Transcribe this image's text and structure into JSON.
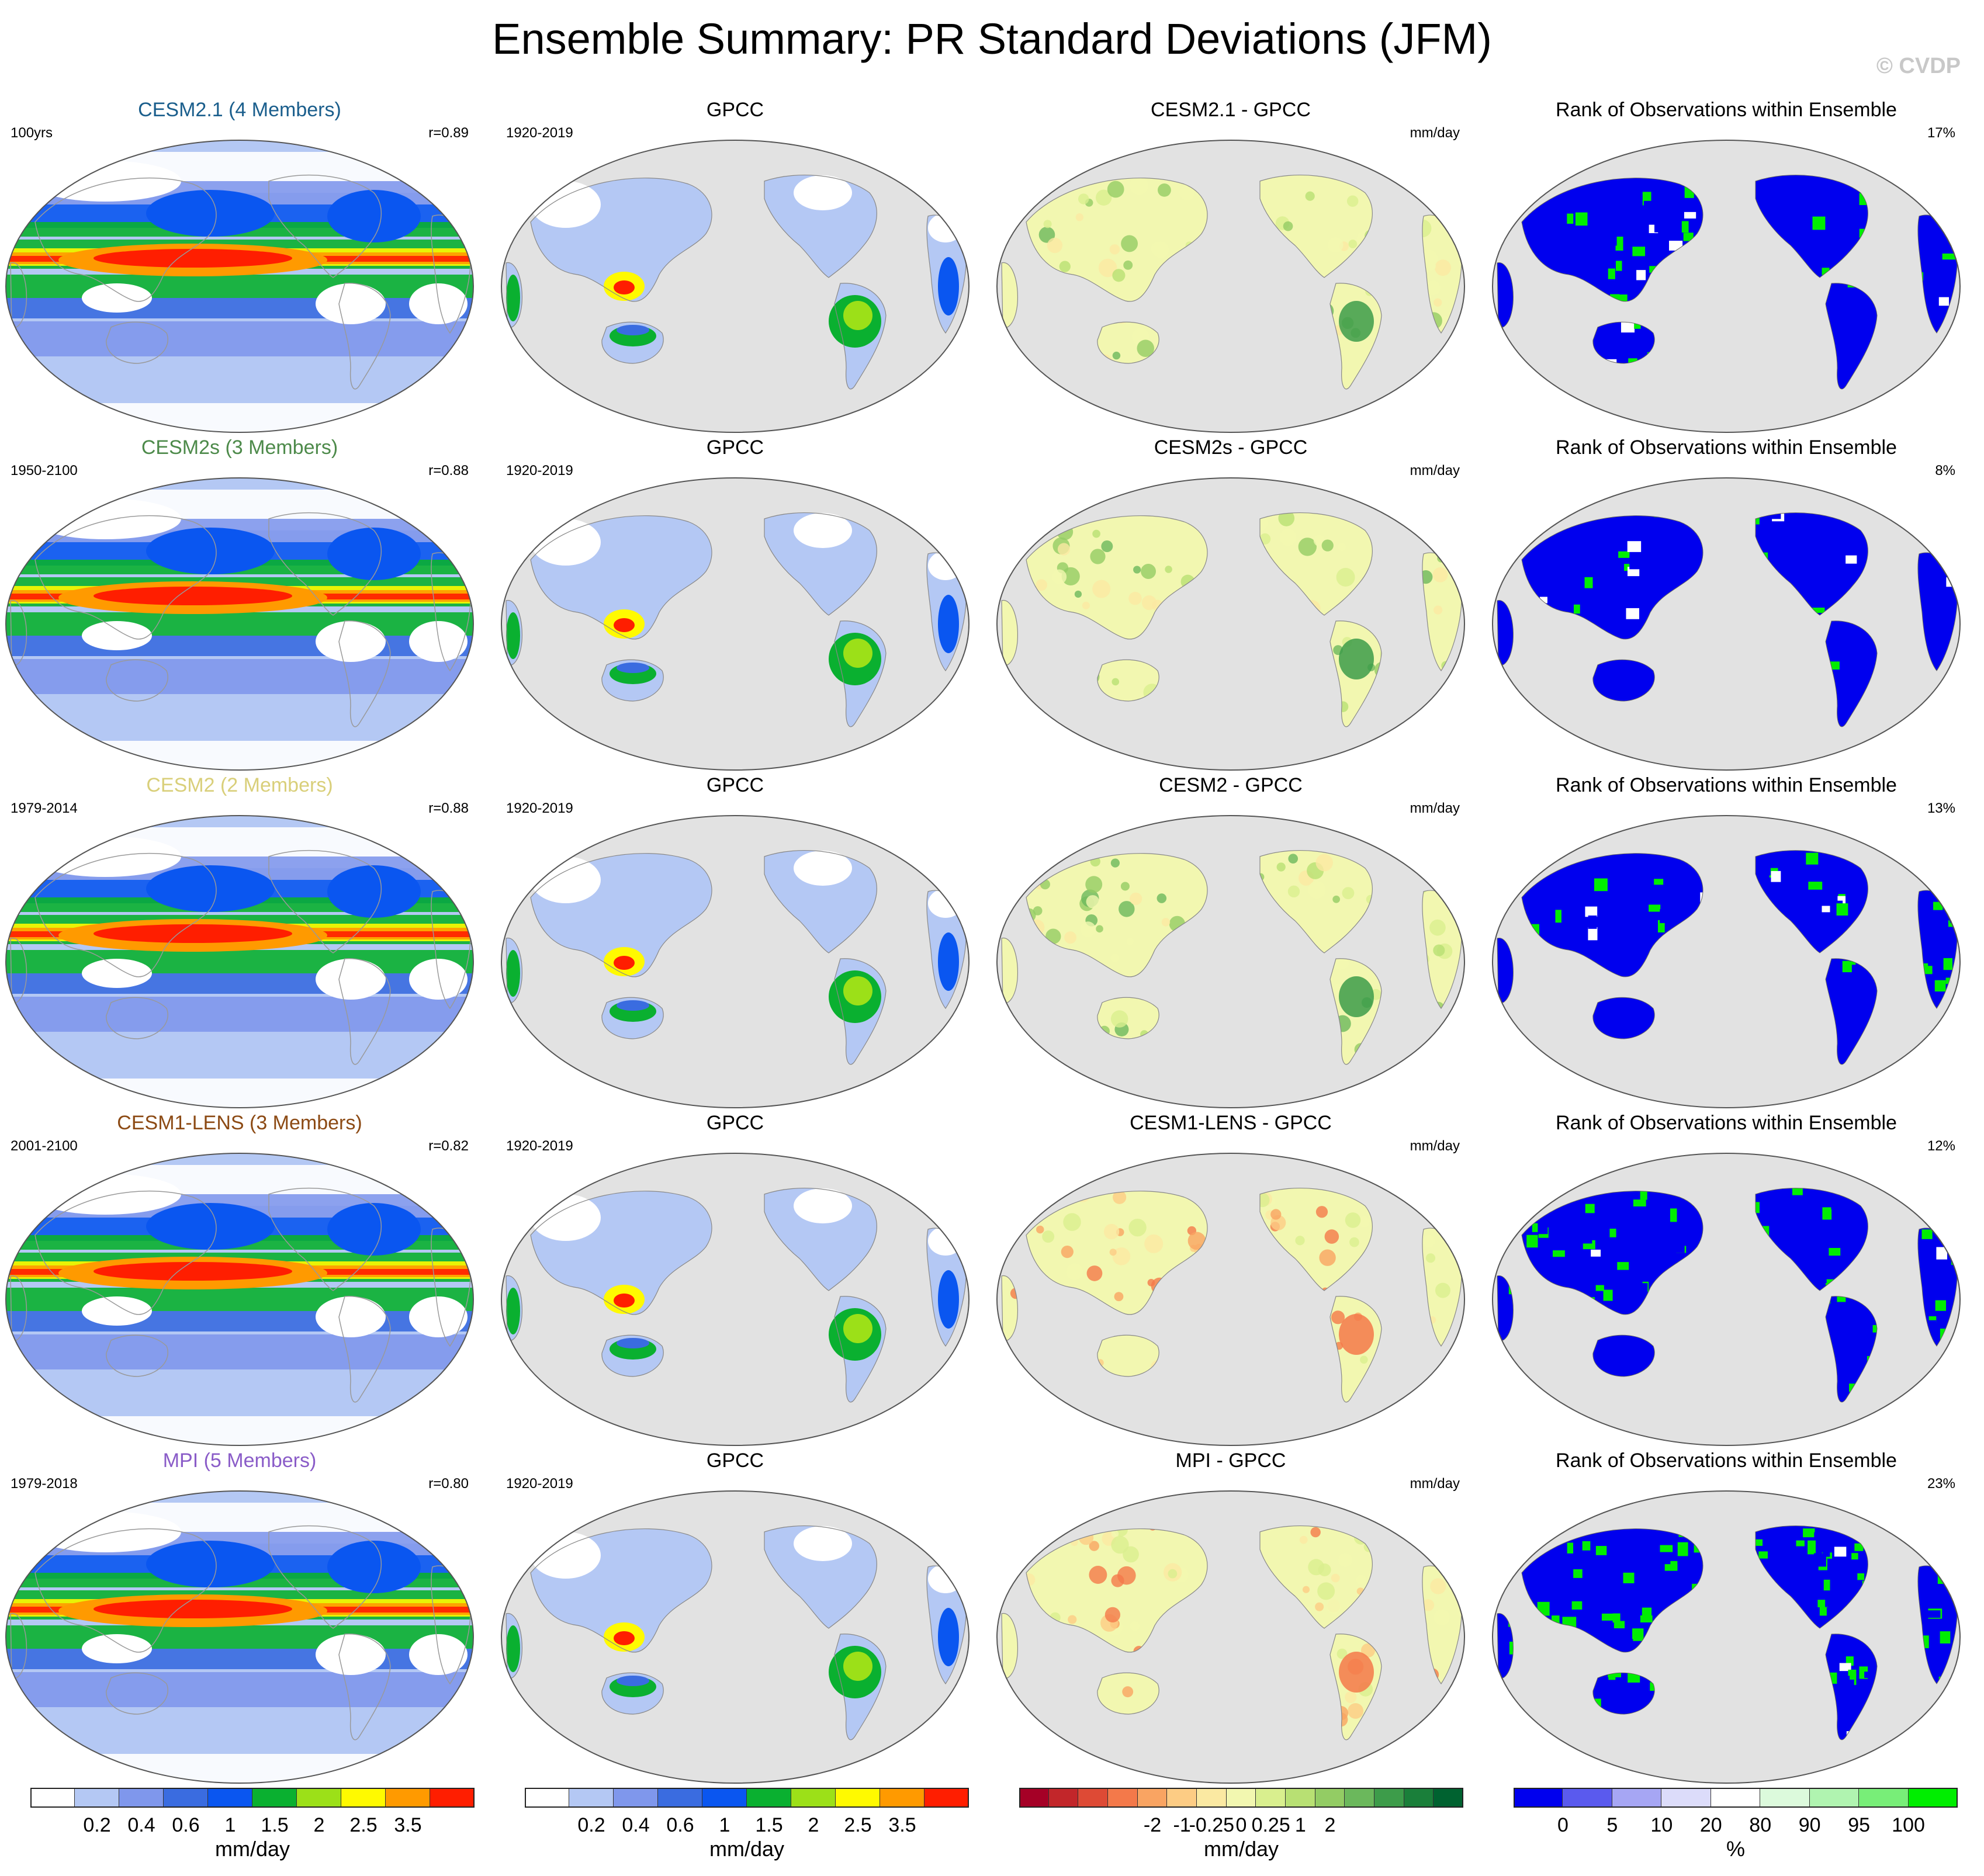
{
  "title": "Ensemble Summary: PR Standard Deviations (JFM)",
  "copyright": "© CVDP",
  "rows": [
    {
      "model": {
        "title": "CESM2.1 (4 Members)",
        "title_color": "#1a5e8c",
        "left": "100yrs",
        "right": "r=0.89"
      },
      "obs": {
        "title": "GPCC",
        "left": "1920-2019",
        "right": ""
      },
      "diff": {
        "title": "CESM2.1 - GPCC",
        "right": "mm/day"
      },
      "rank": {
        "title": "Rank of Observations within Ensemble",
        "right": "17%"
      }
    },
    {
      "model": {
        "title": "CESM2s (3 Members)",
        "title_color": "#4d8a4a",
        "left": "1950-2100",
        "right": "r=0.88"
      },
      "obs": {
        "title": "GPCC",
        "left": "1920-2019",
        "right": ""
      },
      "diff": {
        "title": "CESM2s - GPCC",
        "right": "mm/day"
      },
      "rank": {
        "title": "Rank of Observations within Ensemble",
        "right": "8%"
      }
    },
    {
      "model": {
        "title": "CESM2 (2 Members)",
        "title_color": "#d9cf7a",
        "left": "1979-2014",
        "right": "r=0.88"
      },
      "obs": {
        "title": "GPCC",
        "left": "1920-2019",
        "right": ""
      },
      "diff": {
        "title": "CESM2 - GPCC",
        "right": "mm/day"
      },
      "rank": {
        "title": "Rank of Observations within Ensemble",
        "right": "13%"
      }
    },
    {
      "model": {
        "title": "CESM1-LENS (3 Members)",
        "title_color": "#8c4a14",
        "left": "2001-2100",
        "right": "r=0.82"
      },
      "obs": {
        "title": "GPCC",
        "left": "1920-2019",
        "right": ""
      },
      "diff": {
        "title": "CESM1-LENS - GPCC",
        "right": "mm/day"
      },
      "rank": {
        "title": "Rank of Observations within Ensemble",
        "right": "12%"
      }
    },
    {
      "model": {
        "title": "MPI (5 Members)",
        "title_color": "#8a5cc8",
        "left": "1979-2018",
        "right": "r=0.80"
      },
      "obs": {
        "title": "GPCC",
        "left": "1920-2019",
        "right": ""
      },
      "diff": {
        "title": "MPI - GPCC",
        "right": "mm/day"
      },
      "rank": {
        "title": "Rank of Observations within Ensemble",
        "right": "23%"
      }
    }
  ],
  "colors": {
    "ocean_gray": "#e2e2e2",
    "outline": "#888888",
    "rank_low": "#0000ee",
    "rank_high": "#00ee00"
  },
  "legends": [
    {
      "unit": "mm/day",
      "ticks": [
        "0.2",
        "0.4",
        "0.6",
        "1",
        "1.5",
        "2",
        "2.5",
        "3.5"
      ],
      "colors": [
        "#ffffff",
        "#b4c8f4",
        "#7f97ec",
        "#3a6ce0",
        "#0a56f0",
        "#0ab030",
        "#9ce018",
        "#fffa00",
        "#ff9a00",
        "#ff1e00"
      ]
    },
    {
      "unit": "mm/day",
      "ticks": [
        "0.2",
        "0.4",
        "0.6",
        "1",
        "1.5",
        "2",
        "2.5",
        "3.5"
      ],
      "colors": [
        "#ffffff",
        "#b4c8f4",
        "#7f97ec",
        "#3a6ce0",
        "#0a56f0",
        "#0ab030",
        "#9ce018",
        "#fffa00",
        "#ff9a00",
        "#ff1e00"
      ]
    },
    {
      "unit": "mm/day",
      "ticks": [
        "-2",
        "-1",
        "-0.25",
        "0",
        "0.25",
        "1",
        "2"
      ],
      "colors": [
        "#a50026",
        "#c2262a",
        "#de4a35",
        "#f4794a",
        "#f9a462",
        "#fdcc84",
        "#fbe9a2",
        "#f2f7b0",
        "#d9ef8e",
        "#b8e073",
        "#93cc64",
        "#6bb85c",
        "#3d9c4a",
        "#1a7f3a",
        "#006230"
      ]
    },
    {
      "unit": "%",
      "ticks": [
        "0",
        "5",
        "10",
        "20",
        "80",
        "90",
        "95",
        "100"
      ],
      "colors": [
        "#0000ee",
        "#5a5aee",
        "#a6a6f4",
        "#dcdcfa",
        "#ffffff",
        "#dcfadc",
        "#b0f4b0",
        "#78ee78",
        "#00ee00"
      ]
    }
  ]
}
